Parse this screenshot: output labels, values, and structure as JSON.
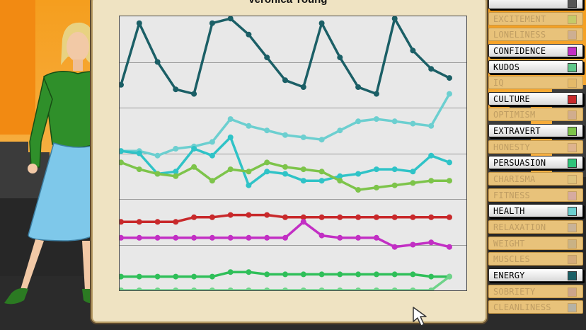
{
  "chart_data": {
    "type": "line",
    "title": "Veronica Young",
    "grid": true,
    "ylim": [
      0,
      12
    ],
    "x": [
      1,
      2,
      3,
      4,
      5,
      6,
      7,
      8,
      9,
      10,
      11,
      12,
      13,
      14,
      15,
      16,
      17,
      18,
      19
    ],
    "series": [
      {
        "name": "ENERGY",
        "color": "#1b5f66",
        "values": [
          9.0,
          11.7,
          10.0,
          8.8,
          8.6,
          11.7,
          11.9,
          11.2,
          10.2,
          9.2,
          8.9,
          11.7,
          10.2,
          8.9,
          8.6,
          11.9,
          10.5,
          9.7,
          9.3
        ]
      },
      {
        "name": "HEALTH",
        "color": "#6ccfd0",
        "values": [
          6.1,
          6.1,
          5.9,
          6.2,
          6.3,
          6.5,
          7.5,
          7.2,
          7.0,
          6.8,
          6.7,
          6.6,
          7.0,
          7.4,
          7.5,
          7.4,
          7.3,
          7.2,
          8.6
        ]
      },
      {
        "name": "PERSUASION",
        "color": "#2fc3c7",
        "values": [
          6.1,
          6.0,
          5.1,
          5.2,
          6.2,
          5.9,
          6.7,
          4.6,
          5.2,
          5.1,
          4.8,
          4.8,
          5.0,
          5.1,
          5.3,
          5.3,
          5.2,
          5.9,
          5.6
        ]
      },
      {
        "name": "EXTRAVERT",
        "color": "#7dc44a",
        "values": [
          5.6,
          5.3,
          5.1,
          5.0,
          5.4,
          4.8,
          5.3,
          5.2,
          5.6,
          5.4,
          5.3,
          5.2,
          4.8,
          4.4,
          4.5,
          4.6,
          4.7,
          4.8,
          4.8
        ]
      },
      {
        "name": "CULTURE",
        "color": "#c8292b",
        "values": [
          3.0,
          3.0,
          3.0,
          3.0,
          3.2,
          3.2,
          3.3,
          3.3,
          3.3,
          3.2,
          3.2,
          3.2,
          3.2,
          3.2,
          3.2,
          3.2,
          3.2,
          3.2,
          3.2
        ]
      },
      {
        "name": "CONFIDENCE",
        "color": "#c22fc4",
        "values": [
          2.3,
          2.3,
          2.3,
          2.3,
          2.3,
          2.3,
          2.3,
          2.3,
          2.3,
          2.3,
          3.0,
          2.4,
          2.3,
          2.3,
          2.3,
          1.9,
          2.0,
          2.1,
          1.9
        ]
      },
      {
        "name": "KUDOS",
        "color": "#2fbf59",
        "values": [
          0.6,
          0.6,
          0.6,
          0.6,
          0.6,
          0.6,
          0.8,
          0.8,
          0.7,
          0.7,
          0.7,
          0.7,
          0.7,
          0.7,
          0.7,
          0.7,
          0.7,
          0.6,
          0.6
        ]
      },
      {
        "name": "KUDOS-light",
        "color": "#6fd38a",
        "values": [
          0.0,
          0.0,
          0.0,
          0.0,
          0.0,
          0.0,
          0.0,
          0.0,
          0.0,
          0.0,
          0.0,
          0.0,
          0.0,
          0.0,
          0.0,
          0.0,
          0.0,
          0.0,
          0.6
        ]
      }
    ]
  },
  "legend": [
    {
      "label": "",
      "color": "#555555",
      "active": true
    },
    {
      "label": "EXCITEMENT",
      "color": "#aad15a",
      "active": false
    },
    {
      "label": "LONELINESS",
      "color": "#b7a0a7",
      "active": false
    },
    {
      "label": "CONFIDENCE",
      "color": "#c22fc4",
      "active": true
    },
    {
      "label": "KUDOS",
      "color": "#5ec78a",
      "active": true
    },
    {
      "label": "IQ",
      "color": "#e3b45c",
      "active": false
    },
    {
      "label": "CULTURE",
      "color": "#c8292b",
      "active": true
    },
    {
      "label": "OPTIMISM",
      "color": "#c09ca0",
      "active": false
    },
    {
      "label": "EXTRAVERT",
      "color": "#7dc44a",
      "active": true
    },
    {
      "label": "HONESTY",
      "color": "#d7a99f",
      "active": false
    },
    {
      "label": "PERSUASION",
      "color": "#2fc37a",
      "active": true
    },
    {
      "label": "CHARISMA",
      "color": "#d6c281",
      "active": false
    },
    {
      "label": "FITNESS",
      "color": "#c99ac0",
      "active": false
    },
    {
      "label": "HEALTH",
      "color": "#6ccfd0",
      "active": true
    },
    {
      "label": "RELAXATION",
      "color": "#b1a8b0",
      "active": false
    },
    {
      "label": "WEIGHT",
      "color": "#b0a58e",
      "active": false
    },
    {
      "label": "MUSCLES",
      "color": "#c49a7a",
      "active": false
    },
    {
      "label": "ENERGY",
      "color": "#1b5f66",
      "active": true
    },
    {
      "label": "SOBRIETY",
      "color": "#b68e9a",
      "active": false
    },
    {
      "label": "CLEANLINESS",
      "color": "#8ea6c8",
      "active": false
    }
  ]
}
